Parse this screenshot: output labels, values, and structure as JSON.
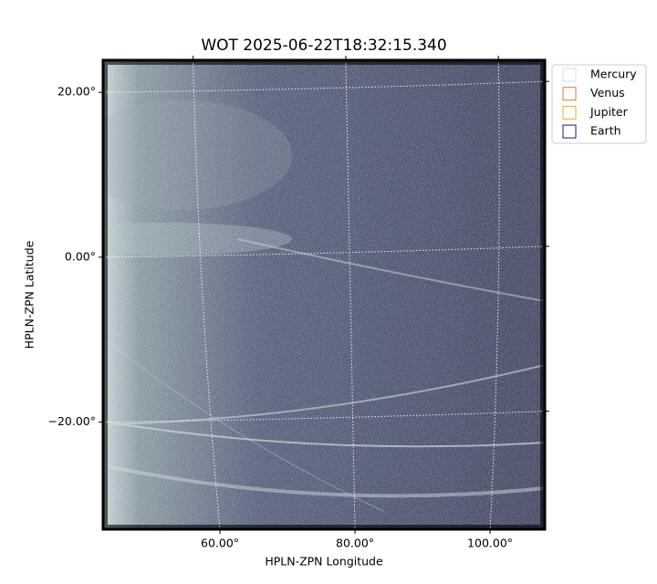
{
  "chart_data": {
    "type": "image",
    "title": "WOT 2025-06-22T18:32:15.340",
    "xlabel": "HPLN-ZPN Longitude",
    "ylabel": "HPLN-ZPN Latitude",
    "xlim": [
      42.7,
      108.1
    ],
    "ylim": [
      -33.0,
      23.9
    ],
    "xticks": [
      {
        "value": 60,
        "label": "60.00°"
      },
      {
        "value": 80,
        "label": "80.00°"
      },
      {
        "value": 100,
        "label": "100.00°"
      }
    ],
    "yticks": [
      {
        "value": -20,
        "label": "−20.00°"
      },
      {
        "value": 0,
        "label": "0.00°"
      },
      {
        "value": 20,
        "label": "20.00°"
      }
    ],
    "grid": true,
    "series": [
      {
        "name": "Mercury",
        "color": "#dddddd"
      },
      {
        "name": "Venus",
        "color": "#e07b39"
      },
      {
        "name": "Jupiter",
        "color": "#e0b020"
      },
      {
        "name": "Earth",
        "color": "#1a1a6e"
      }
    ]
  }
}
